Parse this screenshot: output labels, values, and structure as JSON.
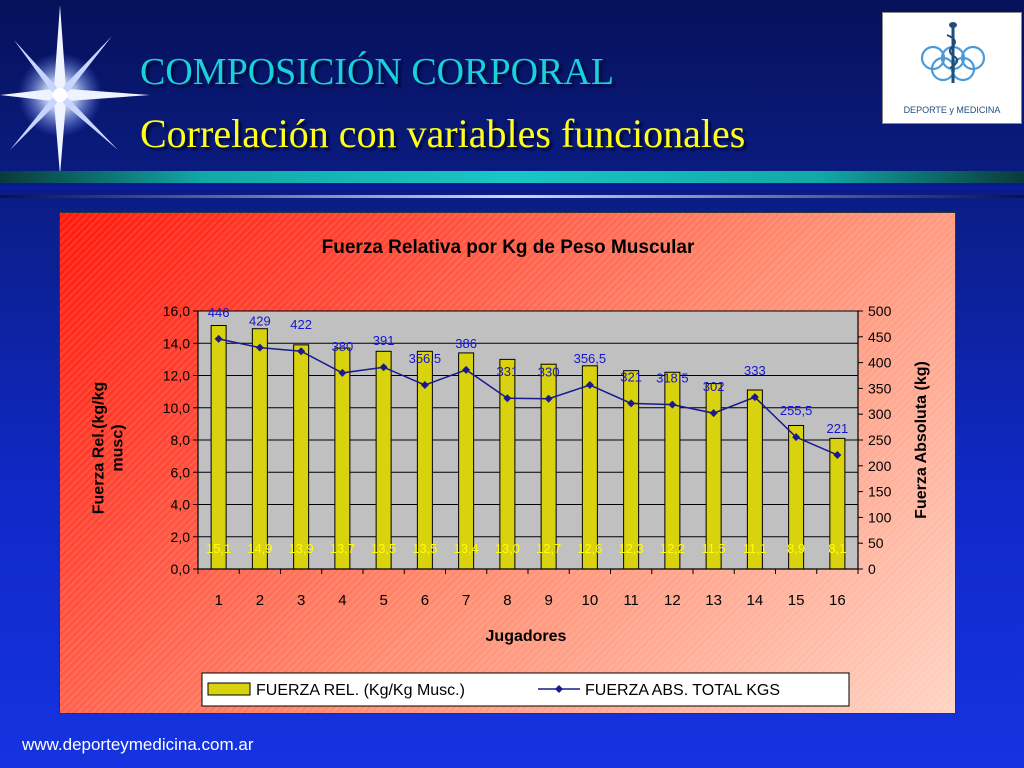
{
  "slide": {
    "title_line1": "COMPOSICIÓN CORPORAL",
    "title_line2": "Correlación con variables funcionales",
    "logo_text": "DEPORTE y MEDICINA",
    "footer_url": "www.deporteymedicina.com.ar"
  },
  "colors": {
    "bar_fill": "#d9d20e",
    "line": "#1a1a8c",
    "plot_bg": "#c0c0c0",
    "title_cyan": "#19d0dc",
    "title_yellow": "#ffff1a"
  },
  "chart_data": {
    "type": "bar",
    "title": "Fuerza Relativa por Kg de Peso Muscular",
    "xlabel": "Jugadores",
    "ylabel": "Fuerza Rel.(kg/kg musc)",
    "ylabel_right": "Fuerza  Absoluta (kg)",
    "categories": [
      "1",
      "2",
      "3",
      "4",
      "5",
      "6",
      "7",
      "8",
      "9",
      "10",
      "11",
      "12",
      "13",
      "14",
      "15",
      "16"
    ],
    "ylim": [
      0,
      16
    ],
    "y_ticks": [
      "0,0",
      "2,0",
      "4,0",
      "6,0",
      "8,0",
      "10,0",
      "12,0",
      "14,0",
      "16,0"
    ],
    "ylim_right": [
      0,
      500
    ],
    "y2_ticks": [
      "0",
      "50",
      "100",
      "150",
      "200",
      "250",
      "300",
      "350",
      "400",
      "450",
      "500"
    ],
    "grid": true,
    "legend_position": "bottom",
    "series": [
      {
        "name": "FUERZA REL. (Kg/Kg Musc.)",
        "type": "bar",
        "axis": "left",
        "values": [
          15.1,
          14.9,
          13.9,
          13.7,
          13.5,
          13.5,
          13.4,
          13.0,
          12.7,
          12.6,
          12.3,
          12.2,
          11.5,
          11.1,
          8.9,
          8.1
        ],
        "labels": [
          "15,1",
          "14,9",
          "13,9",
          "13,7",
          "13,5",
          "13,5",
          "13,4",
          "13,0",
          "12,7",
          "12,6",
          "12,3",
          "12,2",
          "11,5",
          "11,1",
          "8,9",
          "8,1"
        ]
      },
      {
        "name": "FUERZA ABS. TOTAL KGS",
        "type": "line",
        "axis": "right",
        "values": [
          446,
          429,
          422,
          380,
          391,
          356.5,
          386,
          331,
          330,
          356.5,
          321,
          318.5,
          302,
          333,
          255.5,
          221
        ],
        "labels": [
          "446",
          "429",
          "422",
          "380",
          "391",
          "356,5",
          "386",
          "331",
          "330",
          "356,5",
          "321",
          "318,5",
          "302",
          "333",
          "255,5",
          "221"
        ]
      }
    ]
  }
}
